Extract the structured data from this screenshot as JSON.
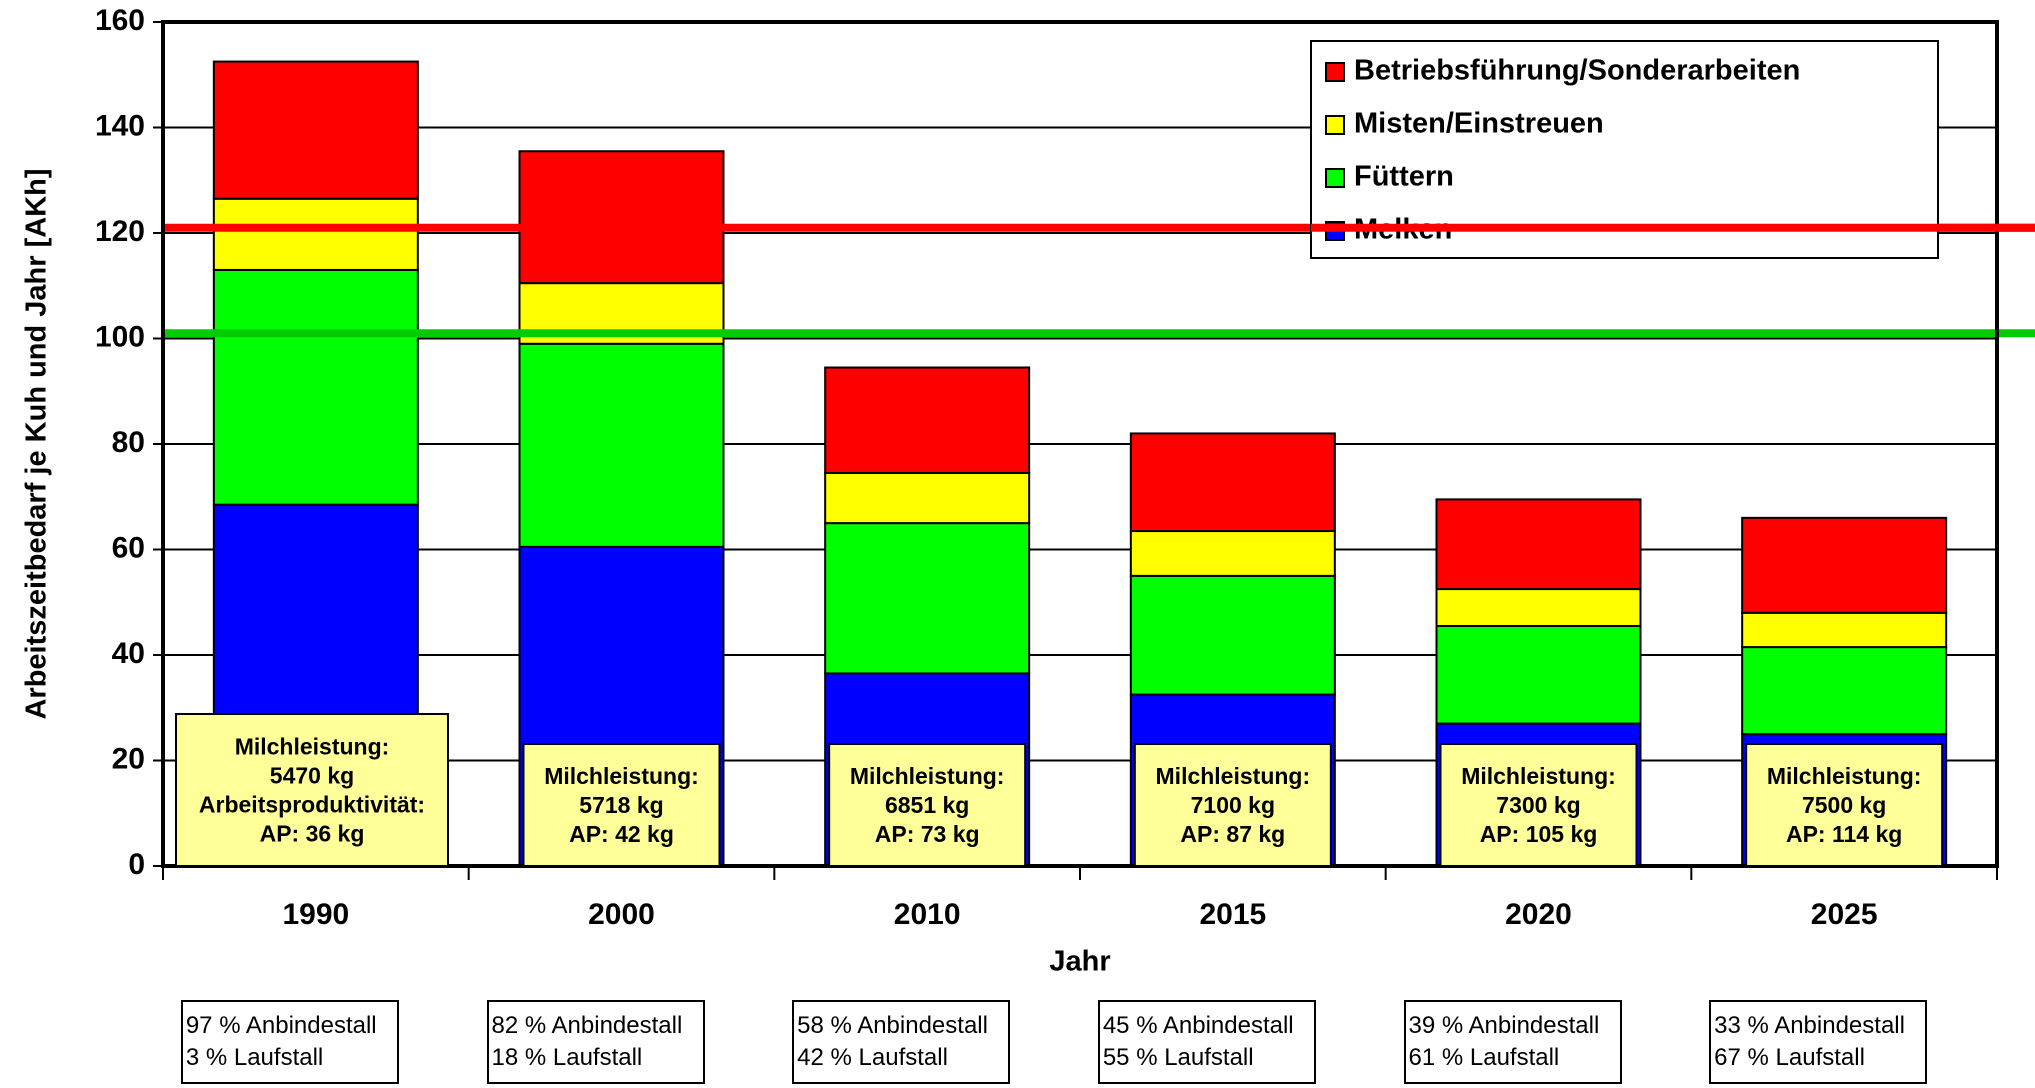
{
  "chart_data": {
    "type": "bar",
    "stacked": true,
    "categories": [
      "1990",
      "2000",
      "2010",
      "2015",
      "2020",
      "2025"
    ],
    "series": [
      {
        "name": "Melken",
        "color": "#0000ff",
        "values": [
          68.5,
          60.5,
          36.5,
          32.5,
          27,
          25
        ]
      },
      {
        "name": "Füttern",
        "color": "#00ff00",
        "values": [
          44.5,
          38.5,
          28.5,
          22.5,
          18.5,
          16.5
        ]
      },
      {
        "name": "Misten/Einstreuen",
        "color": "#ffff00",
        "values": [
          13.5,
          11.5,
          9.5,
          8.5,
          7,
          6.5
        ]
      },
      {
        "name": "Betriebsführung/Sonderarbeiten",
        "color": "#ff0000",
        "values": [
          26,
          25,
          20,
          18.5,
          17,
          18
        ]
      }
    ],
    "legend_order": [
      "Betriebsführung/Sonderarbeiten",
      "Misten/Einstreuen",
      "Füttern",
      "Melken"
    ],
    "reference_lines": [
      {
        "value": 121,
        "color": "#ff0000"
      },
      {
        "value": 101,
        "color": "#00cc00"
      }
    ],
    "xlabel": "Jahr",
    "ylabel": "Arbeitszeitbedarf je Kuh und Jahr [AKh]",
    "ylim": [
      0,
      160
    ],
    "yticks": [
      0,
      20,
      40,
      60,
      80,
      100,
      120,
      140,
      160
    ],
    "grid": true,
    "legend_position": "top-right",
    "bar_annotations": [
      {
        "lines": [
          "Milchleistung:",
          "5470 kg",
          "Arbeitsproduktivität:",
          "AP: 36 kg"
        ]
      },
      {
        "lines": [
          "Milchleistung:",
          "5718 kg",
          "AP: 42 kg"
        ]
      },
      {
        "lines": [
          "Milchleistung:",
          "6851 kg",
          "AP: 73 kg"
        ]
      },
      {
        "lines": [
          "Milchleistung:",
          "7100 kg",
          "AP: 87 kg"
        ]
      },
      {
        "lines": [
          "Milchleistung:",
          "7300 kg",
          "AP: 105 kg"
        ]
      },
      {
        "lines": [
          "Milchleistung:",
          "7500 kg",
          "AP: 114 kg"
        ]
      }
    ],
    "annotation_color": "#ffff99",
    "stall_boxes": [
      {
        "line1": "97 % Anbindestall",
        "line2": "3 % Laufstall"
      },
      {
        "line1": "82 % Anbindestall",
        "line2": "18 % Laufstall"
      },
      {
        "line1": "58 % Anbindestall",
        "line2": "42 % Laufstall"
      },
      {
        "line1": "45 % Anbindestall",
        "line2": "55 % Laufstall"
      },
      {
        "line1": "39 % Anbindestall",
        "line2": "61 % Laufstall"
      },
      {
        "line1": "33 % Anbindestall",
        "line2": "67 % Laufstall"
      }
    ]
  }
}
